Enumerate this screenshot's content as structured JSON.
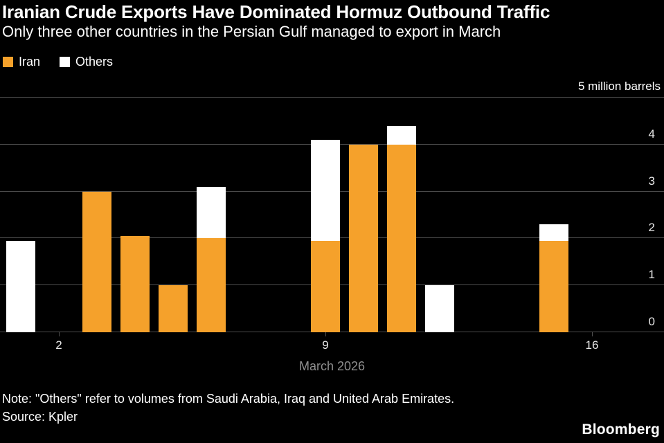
{
  "header": {
    "title": "Iranian Crude Exports Have Dominated Hormuz Outbound Traffic",
    "subtitle": "Only three other countries in the Persian Gulf managed to export in March"
  },
  "legend": [
    {
      "label": "Iran",
      "color": "#F5A12B"
    },
    {
      "label": "Others",
      "color": "#FFFFFF"
    }
  ],
  "chart_data": {
    "type": "bar",
    "stacked": true,
    "title": "Iranian Crude Exports Have Dominated Hormuz Outbound Traffic",
    "subtitle": "Only three other countries in the Persian Gulf managed to export in March",
    "unit_label": "5 million barrels",
    "x_axis_label": "March 2026",
    "ylim": [
      0,
      5
    ],
    "y_ticks": [
      0,
      1,
      2,
      3,
      4
    ],
    "x_ticks": [
      2,
      9,
      16
    ],
    "x_range_days": [
      1,
      17
    ],
    "series_names": [
      "Iran",
      "Others"
    ],
    "bars": [
      {
        "day": 1,
        "iran": 0,
        "others": 1.95
      },
      {
        "day": 3,
        "iran": 3.0,
        "others": 0
      },
      {
        "day": 4,
        "iran": 2.05,
        "others": 0
      },
      {
        "day": 5,
        "iran": 1.0,
        "others": 0
      },
      {
        "day": 6,
        "iran": 2.0,
        "others": 1.1
      },
      {
        "day": 9,
        "iran": 1.95,
        "others": 2.15
      },
      {
        "day": 10,
        "iran": 4.0,
        "others": 0
      },
      {
        "day": 11,
        "iran": 4.0,
        "others": 0.4
      },
      {
        "day": 12,
        "iran": 0,
        "others": 1.0
      },
      {
        "day": 15,
        "iran": 1.95,
        "others": 0.35
      }
    ]
  },
  "footer": {
    "note": "Note: \"Others\" refer to volumes from Saudi Arabia, Iraq and United Arab Emirates.",
    "source": "Source: Kpler",
    "brand": "Bloomberg"
  },
  "colors": {
    "background": "#000000",
    "iran": "#F5A12B",
    "others": "#FFFFFF",
    "gridline": "#4f4f4f",
    "tick_label": "#e8e8e8",
    "axis_title": "#8f8f8f"
  }
}
